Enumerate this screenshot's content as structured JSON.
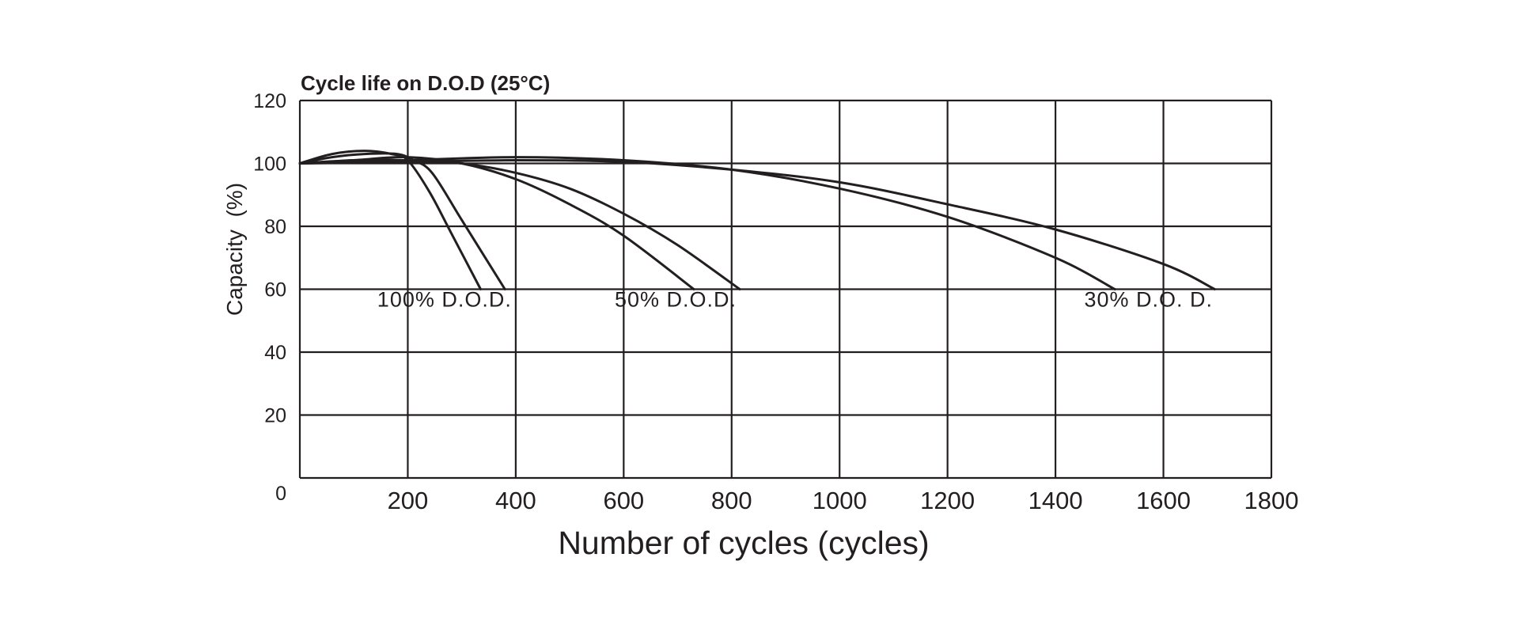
{
  "chart_data": {
    "type": "line",
    "title": "Cycle life on D.O.D (25°C)",
    "xlabel": "Number of cycles (cycles)",
    "ylabel": "Capacity  (%)",
    "xlim": [
      0,
      1800
    ],
    "ylim": [
      0,
      120
    ],
    "grid": true,
    "x_ticks": [
      200,
      400,
      600,
      800,
      1000,
      1200,
      1400,
      1600,
      1800
    ],
    "y_ticks": [
      0,
      20,
      40,
      60,
      80,
      100,
      120
    ],
    "annotations": [
      {
        "id": "dod100",
        "text": "100% D.O.D.",
        "x": 180,
        "y": 55
      },
      {
        "id": "dod50",
        "text": "50% D.O.D.",
        "x": 620,
        "y": 55
      },
      {
        "id": "dod30",
        "text": "30% D.O. D.",
        "x": 1490,
        "y": 55
      }
    ],
    "series": [
      {
        "name": "100% D.O.D. (a)",
        "group": "100% D.O.D.",
        "x": [
          0,
          60,
          120,
          170,
          200,
          240,
          280,
          335
        ],
        "y": [
          100,
          103,
          104,
          103,
          101,
          91,
          78,
          60
        ]
      },
      {
        "name": "100% D.O.D. (b)",
        "group": "100% D.O.D.",
        "x": [
          0,
          60,
          120,
          180,
          210,
          245,
          300,
          380
        ],
        "y": [
          100,
          102,
          103,
          103,
          101,
          97,
          82,
          60
        ]
      },
      {
        "name": "50% D.O.D. (a)",
        "group": "50% D.O.D.",
        "x": [
          0,
          100,
          200,
          300,
          400,
          500,
          600,
          730
        ],
        "y": [
          100,
          101,
          102,
          100,
          95,
          87,
          77,
          60
        ]
      },
      {
        "name": "50% D.O.D. (b)",
        "group": "50% D.O.D.",
        "x": [
          0,
          100,
          200,
          300,
          400,
          500,
          600,
          700,
          815
        ],
        "y": [
          100,
          101,
          101,
          100,
          97,
          92,
          84,
          74,
          60
        ]
      },
      {
        "name": "30% D.O.D. (a)",
        "group": "30% D.O. D.",
        "x": [
          0,
          200,
          400,
          600,
          800,
          1000,
          1200,
          1400,
          1510
        ],
        "y": [
          100,
          101,
          102,
          101,
          98,
          92,
          83,
          70,
          60
        ]
      },
      {
        "name": "30% D.O.D. (b)",
        "group": "30% D.O. D.",
        "x": [
          0,
          200,
          400,
          600,
          800,
          1000,
          1200,
          1400,
          1600,
          1695
        ],
        "y": [
          100,
          100.5,
          101,
          100.5,
          98,
          94,
          87,
          79,
          68,
          60
        ]
      }
    ]
  }
}
